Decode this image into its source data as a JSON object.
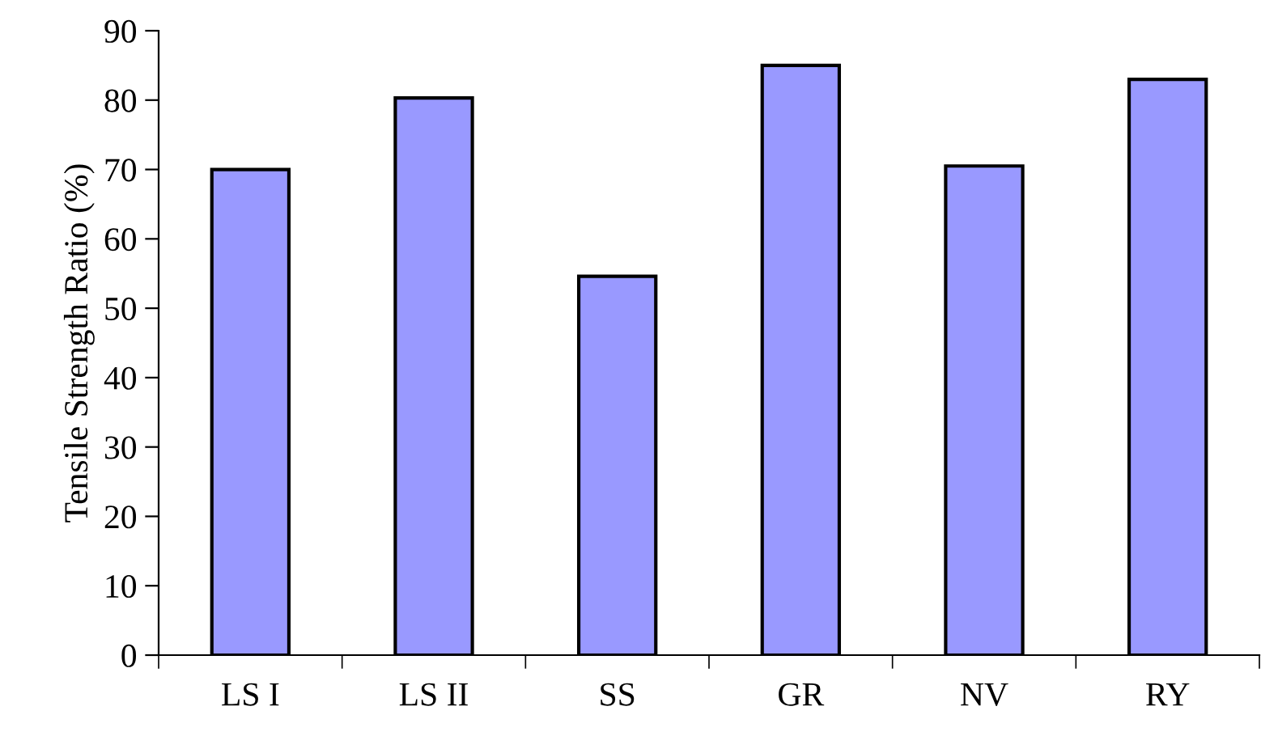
{
  "chart_data": {
    "type": "bar",
    "ylabel": "Tensile Strength Ratio (%)",
    "categories": [
      "LS I",
      "LS II",
      "SS",
      "GR",
      "NV",
      "RY"
    ],
    "values": [
      70,
      80.3,
      54.6,
      85,
      70.5,
      83
    ],
    "color": "#9999ff",
    "ylim": [
      0,
      90
    ],
    "yticks": [
      0,
      10,
      20,
      30,
      40,
      50,
      60,
      70,
      80,
      90
    ],
    "grid": false,
    "legend": false
  }
}
